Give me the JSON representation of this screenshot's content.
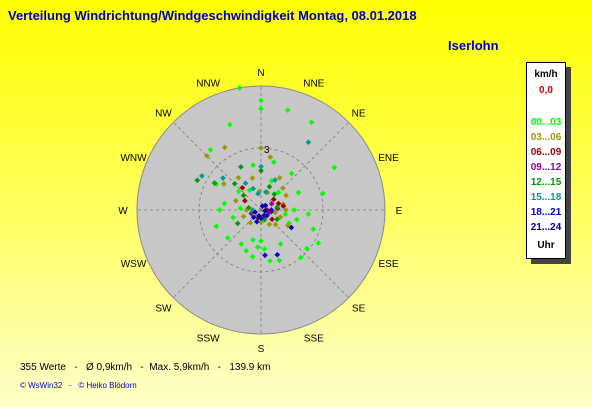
{
  "header": {
    "title": "Verteilung Windrichtung/Windgeschwindigkeit  Montag, 08.01.2018",
    "location": "Iserlohn"
  },
  "footer": {
    "stats": "355 Werte   -   Ø 0,9km/h   -  Max. 5,9km/h   -   139.9 km",
    "credits": "© WsWin32   -   © Heiko Blödorn"
  },
  "legend": {
    "unit": "km/h",
    "calm": "0,0",
    "calm_color": "#cc0000",
    "footer": "Uhr",
    "ranges": [
      {
        "label": "00...03",
        "color": "#00ff00"
      },
      {
        "label": "03...06",
        "color": "#999900"
      },
      {
        "label": "06...09",
        "color": "#990000"
      },
      {
        "label": "09...12",
        "color": "#990099"
      },
      {
        "label": "12...15",
        "color": "#009900"
      },
      {
        "label": "15...18",
        "color": "#009999"
      },
      {
        "label": "18...21",
        "color": "#0000cc"
      },
      {
        "label": "21...24",
        "color": "#000099"
      }
    ]
  },
  "chart_data": {
    "type": "scatter",
    "projection": "polar",
    "directions": [
      "N",
      "NNE",
      "NE",
      "ENE",
      "E",
      "ESE",
      "SE",
      "SSE",
      "S",
      "SSW",
      "SW",
      "WSW",
      "W",
      "WNW",
      "NW",
      "NNW"
    ],
    "ring_labels": [
      {
        "value": 3,
        "text": "3"
      }
    ],
    "r_max": 6,
    "angle_unit": "degrees from north, clockwise",
    "series": [
      {
        "color": "#00ff00",
        "points": [
          [
            350,
            6.0
          ],
          [
            0,
            5.3
          ],
          [
            0,
            4.9
          ],
          [
            15,
            5.0
          ],
          [
            30,
            4.9
          ],
          [
            60,
            4.1
          ],
          [
            75,
            3.1
          ],
          [
            90,
            1.6
          ],
          [
            105,
            1.8
          ],
          [
            110,
            2.7
          ],
          [
            120,
            3.2
          ],
          [
            130,
            2.9
          ],
          [
            140,
            3.0
          ],
          [
            160,
            2.6
          ],
          [
            170,
            2.5
          ],
          [
            180,
            1.5
          ],
          [
            185,
            1.8
          ],
          [
            190,
            2.3
          ],
          [
            200,
            2.1
          ],
          [
            210,
            1.9
          ],
          [
            230,
            2.1
          ],
          [
            250,
            2.3
          ],
          [
            270,
            2.0
          ],
          [
            280,
            1.8
          ],
          [
            300,
            2.5
          ],
          [
            320,
            3.8
          ],
          [
            340,
            4.4
          ],
          [
            350,
            2.2
          ],
          [
            20,
            1.5
          ],
          [
            45,
            1.2
          ],
          [
            65,
            2.0
          ],
          [
            95,
            2.3
          ],
          [
            100,
            1.2
          ],
          [
            150,
            1.9
          ],
          [
            175,
            1.9
          ],
          [
            195,
            1.5
          ],
          [
            255,
            1.4
          ],
          [
            275,
            1.0
          ],
          [
            310,
            1.4
          ],
          [
            330,
            1.1
          ],
          [
            15,
            2.4
          ],
          [
            40,
            2.3
          ],
          [
            115,
            1.5
          ]
        ]
      },
      {
        "color": "#999900",
        "points": [
          [
            315,
            3.7
          ],
          [
            330,
            3.5
          ],
          [
            0,
            3.0
          ],
          [
            10,
            2.6
          ],
          [
            30,
            1.8
          ],
          [
            45,
            1.5
          ],
          [
            60,
            1.4
          ],
          [
            75,
            1.1
          ],
          [
            90,
            1.2
          ],
          [
            110,
            1.0
          ],
          [
            120,
            1.5
          ],
          [
            150,
            0.8
          ],
          [
            180,
            0.6
          ],
          [
            220,
            0.8
          ],
          [
            250,
            0.9
          ],
          [
            270,
            0.7
          ],
          [
            290,
            1.3
          ],
          [
            305,
            2.2
          ],
          [
            325,
            1.9
          ],
          [
            345,
            1.6
          ],
          [
            355,
            0.9
          ],
          [
            20,
            0.9
          ],
          [
            100,
            0.7
          ],
          [
            135,
            1.0
          ]
        ]
      },
      {
        "color": "#990000",
        "points": [
          [
            80,
            1.1
          ],
          [
            70,
            0.9
          ],
          [
            100,
            0.5
          ],
          [
            90,
            0.3
          ],
          [
            50,
            0.8
          ],
          [
            130,
            0.7
          ],
          [
            200,
            0.4
          ],
          [
            300,
            0.9
          ],
          [
            320,
            1.4
          ]
        ]
      },
      {
        "color": "#990099",
        "points": [
          [
            85,
            0.8
          ],
          [
            110,
            0.4
          ],
          [
            60,
            0.6
          ],
          [
            250,
            0.5
          ]
        ]
      },
      {
        "color": "#009900",
        "points": [
          [
            295,
            3.4
          ],
          [
            300,
            2.6
          ],
          [
            315,
            1.8
          ],
          [
            335,
            2.3
          ],
          [
            0,
            1.9
          ],
          [
            20,
            1.2
          ],
          [
            40,
            1.0
          ],
          [
            80,
            0.8
          ],
          [
            120,
            0.9
          ],
          [
            160,
            0.5
          ],
          [
            240,
            1.3
          ],
          [
            260,
            0.4
          ],
          [
            280,
            0.6
          ],
          [
            310,
            1.1
          ]
        ]
      },
      {
        "color": "#009999",
        "points": [
          [
            300,
            3.3
          ],
          [
            310,
            2.4
          ],
          [
            330,
            1.5
          ],
          [
            340,
            1.1
          ],
          [
            15,
            0.9
          ],
          [
            35,
            4.0
          ],
          [
            0,
            2.1
          ],
          [
            270,
            0.4
          ],
          [
            350,
            0.8
          ],
          [
            25,
            1.6
          ]
        ]
      },
      {
        "color": "#0000cc",
        "points": [
          [
            160,
            2.3
          ],
          [
            175,
            2.2
          ],
          [
            120,
            1.7
          ],
          [
            90,
            0.5
          ],
          [
            45,
            0.3
          ],
          [
            200,
            0.6
          ],
          [
            135,
            0.4
          ],
          [
            180,
            0.4
          ],
          [
            225,
            0.5
          ]
        ]
      },
      {
        "color": "#000099",
        "points": [
          [
            100,
            0.2
          ],
          [
            150,
            0.3
          ],
          [
            200,
            0.3
          ],
          [
            250,
            0.3
          ],
          [
            20,
            0.2
          ]
        ]
      }
    ]
  }
}
